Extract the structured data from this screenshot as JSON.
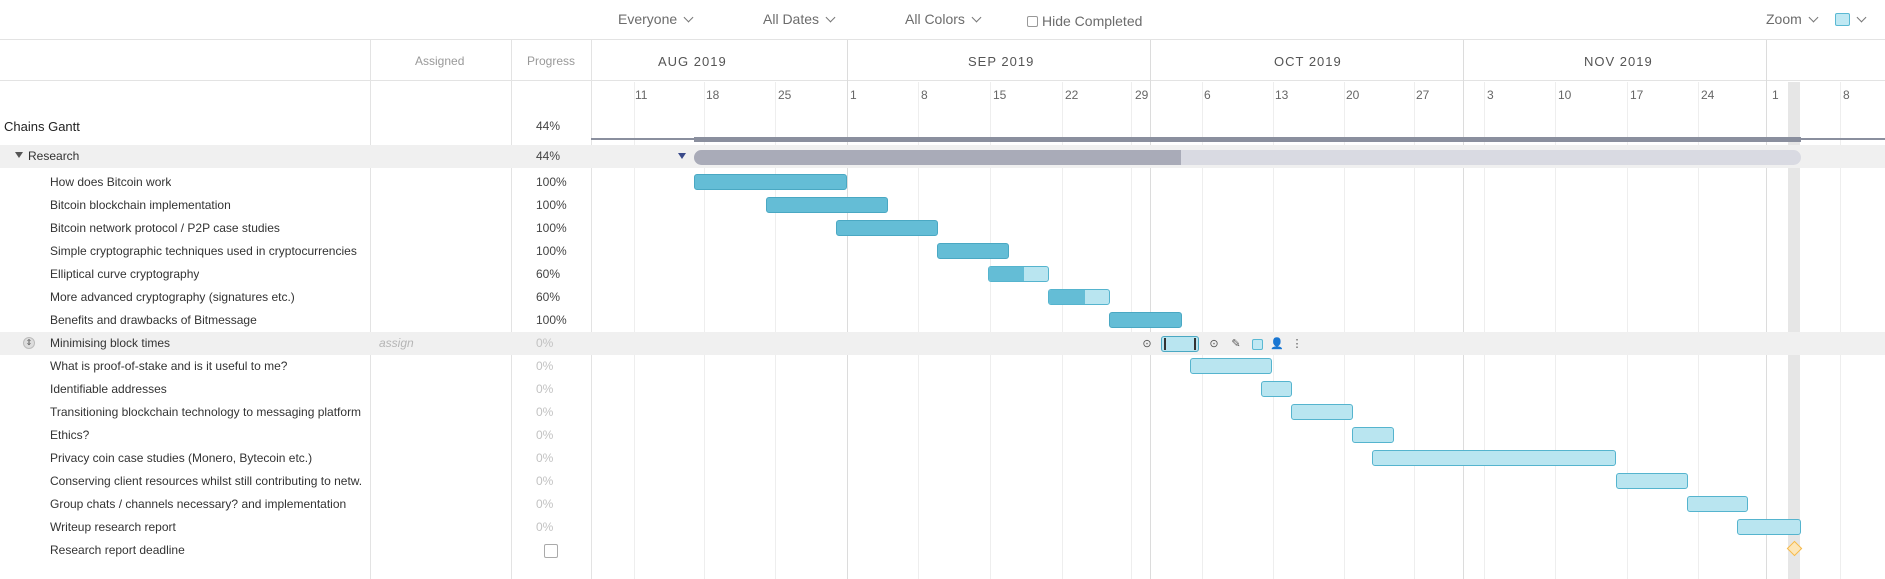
{
  "toolbar": {
    "assignee_filter": "Everyone",
    "date_filter": "All Dates",
    "color_filter": "All Colors",
    "hide_completed_label": "Hide Completed",
    "zoom_label": "Zoom",
    "accent_color": "#5ab9d3"
  },
  "columns": {
    "assigned": "Assigned",
    "progress": "Progress"
  },
  "timeline": {
    "months": [
      "AUG 2019",
      "SEP 2019",
      "OCT 2019",
      "NOV 2019"
    ],
    "weeks": [
      "11",
      "18",
      "25",
      "1",
      "8",
      "15",
      "22",
      "29",
      "6",
      "13",
      "20",
      "27",
      "3",
      "10",
      "17",
      "24",
      "1",
      "8"
    ]
  },
  "project": {
    "name": "Chains Gantt",
    "progress": "44%"
  },
  "group": {
    "name": "Research",
    "progress": "44%",
    "completion_fraction": 0.44
  },
  "tasks": [
    {
      "name": "How does Bitcoin work",
      "progress": "100%"
    },
    {
      "name": "Bitcoin blockchain implementation",
      "progress": "100%"
    },
    {
      "name": "Bitcoin network protocol / P2P case studies",
      "progress": "100%"
    },
    {
      "name": "Simple cryptographic techniques used in cryptocurrencies",
      "progress": "100%"
    },
    {
      "name": "Elliptical curve cryptography",
      "progress": "60%"
    },
    {
      "name": "More advanced cryptography (signatures etc.)",
      "progress": "60%"
    },
    {
      "name": "Benefits and drawbacks of Bitmessage",
      "progress": "100%"
    },
    {
      "name": "Minimising block times",
      "progress": "0%",
      "assign_placeholder": "assign"
    },
    {
      "name": "What is proof-of-stake and is it useful to me?",
      "progress": "0%"
    },
    {
      "name": "Identifiable addresses",
      "progress": "0%"
    },
    {
      "name": "Transitioning blockchain technology to messaging platform",
      "progress": "0%"
    },
    {
      "name": "Ethics?",
      "progress": "0%"
    },
    {
      "name": "Privacy coin case studies (Monero, Bytecoin etc.)",
      "progress": "0%"
    },
    {
      "name": "Conserving client resources whilst still contributing to netw.",
      "progress": "0%"
    },
    {
      "name": "Group chats / channels necessary? and implementation",
      "progress": "0%"
    },
    {
      "name": "Writeup research report",
      "progress": "0%"
    },
    {
      "name": "Research report deadline",
      "progress": ""
    }
  ],
  "icons": {
    "toolbar": [
      "chevron-down-icon",
      "checkbox-icon",
      "color-swatch-icon"
    ],
    "row_actions": [
      "dependency-left-icon",
      "dependency-right-icon",
      "pencil-icon",
      "color-icon",
      "person-icon",
      "more-icon"
    ],
    "milestone": "diamond-icon"
  },
  "colors": {
    "complete_bar": "#64bdd6",
    "incomplete_bar": "#b9e5f0",
    "summary_bar": "#a9abb8",
    "summary_track": "#d9dae2",
    "milestone": "#f5b94a"
  }
}
